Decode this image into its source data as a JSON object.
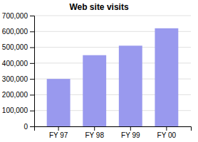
{
  "chart_data": {
    "type": "bar",
    "title": "Web site visits",
    "categories": [
      "FY 97",
      "FY 98",
      "FY 99",
      "FY 00"
    ],
    "values": [
      300000,
      450000,
      510000,
      620000
    ],
    "color": "#9999ee",
    "ylim": [
      0,
      700000
    ],
    "yticks": [
      0,
      {
        "value": 100000,
        "label": "100,000"
      },
      {
        "value": 200000,
        "label": "200,000"
      },
      {
        "value": 300000,
        "label": "300,000"
      },
      {
        "value": 400000,
        "label": "400,000"
      },
      {
        "value": 500000,
        "label": "500,000"
      },
      {
        "value": 600000,
        "label": "600,000"
      },
      {
        "value": 700000,
        "label": "700,000"
      }
    ],
    "grid": true
  }
}
